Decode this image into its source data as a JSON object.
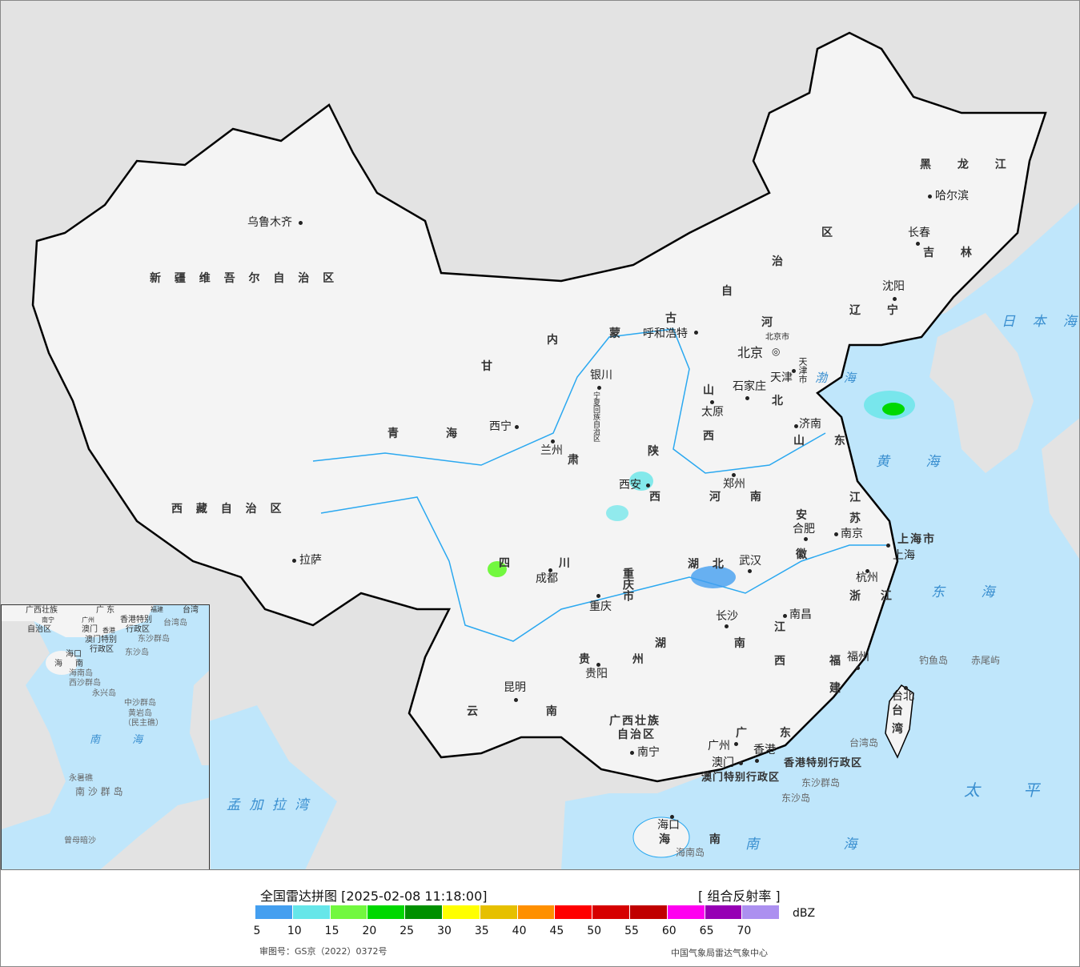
{
  "legend": {
    "title": "全国雷达拼图 [2025-02-08 11:18:00]",
    "product": "[ 组合反射率 ]",
    "unit": "dBZ",
    "ticks": [
      "5",
      "10",
      "15",
      "20",
      "25",
      "30",
      "35",
      "40",
      "45",
      "50",
      "55",
      "60",
      "65",
      "70"
    ],
    "colors": [
      "#449ff0",
      "#66e6e9",
      "#72f83f",
      "#00d800",
      "#009000",
      "#ffff00",
      "#e6c000",
      "#ff9000",
      "#ff0000",
      "#d60000",
      "#c00000",
      "#ff00f0",
      "#9600b4",
      "#ac90f0"
    ],
    "approval": "审图号：GS京（2022）0372号",
    "credit": "中国气象局雷达气象中心"
  },
  "map": {
    "colors": {
      "sea": "#bfe6fb",
      "land": "#f4f4f4",
      "foreign": "#e3e3e3",
      "border": "#000000",
      "river": "#2aa8f0"
    },
    "provinces": [
      "新 疆 维 吾 尔 自 治 区",
      "西 藏 自 治 区",
      "青",
      "海",
      "甘",
      "肃",
      "内",
      "蒙",
      "古",
      "自",
      "治",
      "区",
      "黑 龙 江",
      "吉 林",
      "辽 宁",
      "河",
      "北",
      "山",
      "西",
      "陕",
      "西",
      "宁夏回族自治区",
      "山 东",
      "河 南",
      "江",
      "苏",
      "安",
      "徽",
      "上海市",
      "湖 北",
      "四 川",
      "重庆市",
      "浙 江",
      "江",
      "西",
      "湖 南",
      "贵 州",
      "福",
      "建",
      "云 南",
      "广西壮族",
      "自治区",
      "广 东",
      "香港特别行政区",
      "澳门特别行政区",
      "海 南",
      "台",
      "湾",
      "天津市",
      "北京市"
    ],
    "cities": [
      "乌鲁木齐",
      "拉萨",
      "西宁",
      "兰州",
      "银川",
      "呼和浩特",
      "北京",
      "天津",
      "石家庄",
      "太原",
      "济南",
      "郑州",
      "西安",
      "成都",
      "重庆",
      "武汉",
      "长沙",
      "南昌",
      "合肥",
      "南京",
      "上海",
      "杭州",
      "福州",
      "贵阳",
      "昆明",
      "南宁",
      "广州",
      "澳门",
      "香港",
      "海口",
      "台北",
      "哈尔滨",
      "长春",
      "沈阳"
    ],
    "seas": [
      "日 本 海",
      "渤 海",
      "黄 海",
      "东 海",
      "太 平 洋",
      "南 海",
      "孟 加 拉 湾"
    ],
    "islands": [
      "钓鱼岛",
      "赤尾屿",
      "台湾岛",
      "东沙群岛",
      "东沙岛",
      "海南岛"
    ],
    "inset": [
      "广西壮族",
      "自治区",
      "南宁",
      "广 东",
      "广州",
      "福建",
      "台湾",
      "香港特别",
      "行政区",
      "澳门",
      "香港",
      "台湾岛",
      "澳门特别",
      "行政区",
      "东沙群岛",
      "东沙岛",
      "海口",
      "海",
      "南",
      "海南岛",
      "西沙群岛",
      "永兴岛",
      "中沙群岛",
      "黄岩岛",
      "（民主礁）",
      "南  海",
      "永暑礁",
      "南 沙 群 岛",
      "曾母暗沙"
    ]
  }
}
